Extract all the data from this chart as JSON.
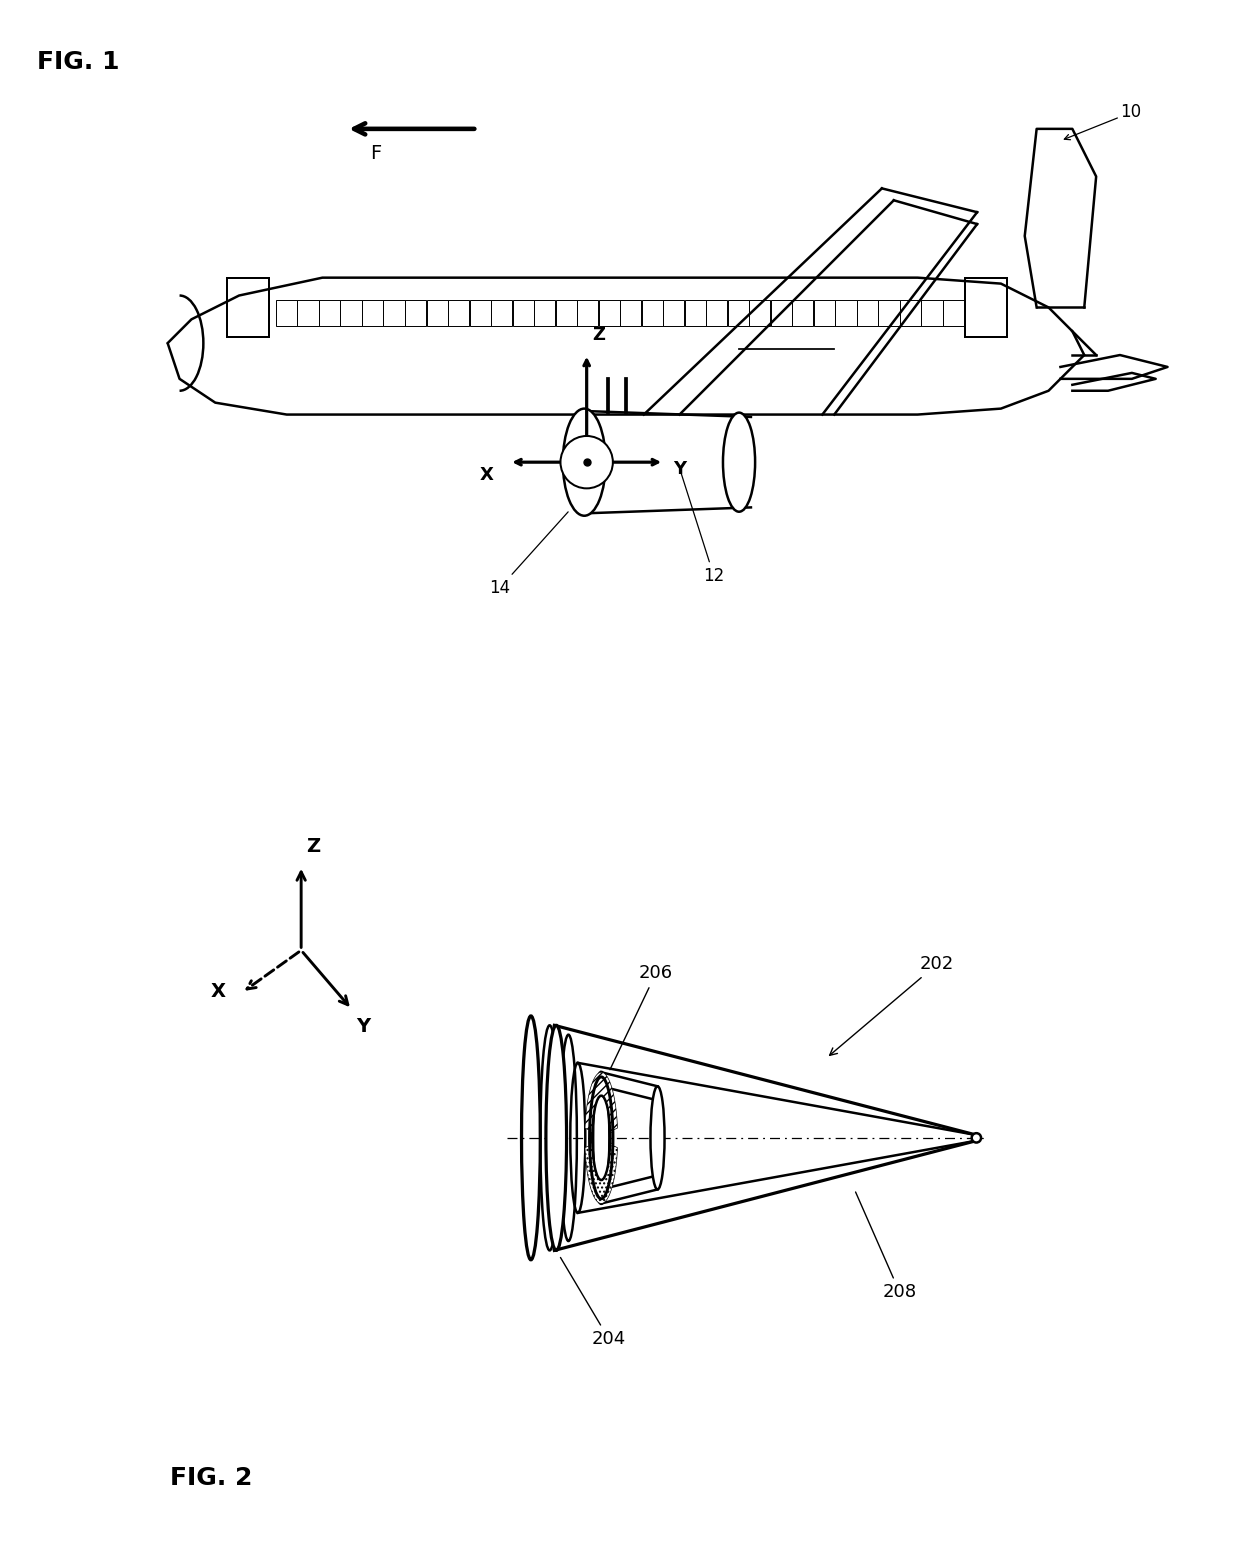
{
  "fig1_label": "FIG. 1",
  "fig2_label": "FIG. 2",
  "label_10": "10",
  "label_12": "12",
  "label_14": "14",
  "label_202": "202",
  "label_204": "204",
  "label_206": "206",
  "label_208": "208",
  "arrow_F_label": "F",
  "bg_color": "#ffffff",
  "line_color": "#000000",
  "line_width": 1.8
}
